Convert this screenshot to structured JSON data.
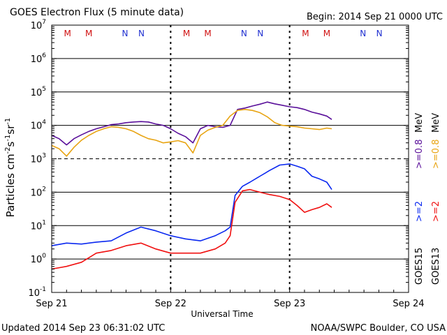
{
  "header": {
    "title": "GOES Electron Flux (5 minute data)",
    "begin": "Begin: 2014 Sep 21 0000 UTC"
  },
  "footer": {
    "updated": "Updated 2014 Sep 23 06:31:02 UTC",
    "credit": "NOAA/SWPC Boulder, CO USA"
  },
  "axes": {
    "ylabel_main": "Particles cm",
    "ylabel_exp1": "-2",
    "ylabel_mid1": "s",
    "ylabel_exp2": "-1",
    "ylabel_mid2": "sr",
    "ylabel_exp3": "-1",
    "xlabel": "Universal Time"
  },
  "legend": {
    "goes15": "GOES15",
    "goes13": "GOES13",
    "g15_ge2": ">=2",
    "g13_ge2": ">=2",
    "g15_ge08": ">=0.8",
    "g13_ge08": ">=0.8",
    "mev": "MeV"
  },
  "colors": {
    "g15_ge08": "#5a109a",
    "g13_ge08": "#e8a412",
    "g15_ge2": "#0a28f0",
    "g13_ge2": "#f01010",
    "noon_M": "#d01010",
    "noon_N": "#2030d0"
  },
  "chart_data": {
    "type": "line",
    "y_scale": "log",
    "ylim": [
      0.1,
      10000000
    ],
    "xlim": [
      "2014-09-21T00:00",
      "2014-09-24T00:00"
    ],
    "x_ticks": [
      "Sep 21",
      "Sep 22",
      "Sep 23",
      "Sep 24"
    ],
    "y_ticks": [
      {
        "base": "10",
        "exp": "-1"
      },
      {
        "base": "10",
        "exp": "0"
      },
      {
        "base": "10",
        "exp": "1"
      },
      {
        "base": "10",
        "exp": "2"
      },
      {
        "base": "10",
        "exp": "3"
      },
      {
        "base": "10",
        "exp": "4"
      },
      {
        "base": "10",
        "exp": "5"
      },
      {
        "base": "10",
        "exp": "6"
      },
      {
        "base": "10",
        "exp": "7"
      }
    ],
    "threshold_lines": [
      1000
    ],
    "noon_markers": [
      {
        "label": "M",
        "t": 3.2
      },
      {
        "label": "M",
        "t": 7.5
      },
      {
        "label": "N",
        "t": 14.8
      },
      {
        "label": "N",
        "t": 18.1
      },
      {
        "label": "M",
        "t": 27.2
      },
      {
        "label": "M",
        "t": 31.5
      },
      {
        "label": "N",
        "t": 38.8
      },
      {
        "label": "N",
        "t": 42.1
      },
      {
        "label": "M",
        "t": 51.2
      },
      {
        "label": "M",
        "t": 55.5
      },
      {
        "label": "N",
        "t": 62.8
      },
      {
        "label": "N",
        "t": 66.1
      }
    ],
    "series": [
      {
        "name": "GOES15 >=0.8 MeV",
        "t": [
          0,
          1.5,
          3,
          4.5,
          6,
          7.5,
          9,
          10.5,
          12,
          13.5,
          15,
          16.5,
          18,
          19.5,
          21,
          22.5,
          24,
          25.5,
          27,
          28.5,
          30,
          31.5,
          33,
          34.5,
          36,
          37.5,
          39,
          40.5,
          42,
          43.5,
          45,
          46.5,
          48,
          49.5,
          51,
          52.5,
          54,
          55.5,
          56.5
        ],
        "v": [
          5000,
          4000,
          2600,
          4000,
          5200,
          6600,
          7900,
          9100,
          10500,
          11000,
          12000,
          12600,
          13000,
          12600,
          11000,
          10000,
          7900,
          5800,
          4600,
          3000,
          7900,
          10000,
          9100,
          8700,
          10000,
          30000,
          33000,
          38000,
          43000,
          50000,
          44000,
          40000,
          36000,
          34000,
          30000,
          25000,
          22000,
          19000,
          15000
        ]
      },
      {
        "name": "GOES13 >=0.8 MeV",
        "t": [
          0,
          1.5,
          3,
          4.5,
          6,
          7.5,
          9,
          10.5,
          12,
          13.5,
          15,
          16.5,
          18,
          19.5,
          21,
          22.5,
          24,
          25.5,
          27,
          28.5,
          30,
          31.5,
          33,
          34.5,
          36,
          37.5,
          39,
          40.5,
          42,
          43.5,
          45,
          46.5,
          48,
          49.5,
          51,
          52.5,
          54,
          55.5,
          56.5
        ],
        "v": [
          2500,
          2000,
          1200,
          2200,
          3600,
          5000,
          6600,
          7900,
          9100,
          8700,
          7900,
          6600,
          5000,
          4000,
          3600,
          3000,
          3200,
          3500,
          3000,
          1500,
          5000,
          7200,
          8700,
          10000,
          19000,
          28000,
          30000,
          28000,
          24000,
          18000,
          12000,
          10000,
          9500,
          9100,
          8300,
          7900,
          7500,
          8300,
          7900
        ]
      },
      {
        "name": "GOES15 >=2 MeV",
        "t": [
          0,
          3,
          6,
          9,
          12,
          15,
          18,
          21,
          24,
          27,
          30,
          33,
          35,
          36,
          37,
          38.5,
          40,
          42,
          44,
          46,
          48,
          49.5,
          51,
          52.5,
          54,
          55.5,
          56.5
        ],
        "v": [
          2.5,
          3,
          2.8,
          3.2,
          3.5,
          6,
          9,
          7,
          5,
          4,
          3.5,
          5,
          7,
          9,
          80,
          150,
          200,
          300,
          450,
          650,
          700,
          600,
          500,
          300,
          250,
          200,
          120
        ]
      },
      {
        "name": "GOES13 >=2 MeV",
        "t": [
          0,
          3,
          6,
          9,
          12,
          15,
          18,
          21,
          24,
          27,
          30,
          33,
          35,
          36,
          37,
          38.5,
          40,
          42,
          44,
          46,
          48,
          49.5,
          51,
          52.5,
          54,
          55.5,
          56.5
        ],
        "v": [
          0.5,
          0.6,
          0.8,
          1.5,
          1.8,
          2.5,
          3,
          2,
          1.5,
          1.5,
          1.5,
          2,
          3,
          5,
          50,
          110,
          120,
          100,
          85,
          75,
          60,
          40,
          25,
          30,
          35,
          45,
          35
        ]
      }
    ]
  }
}
